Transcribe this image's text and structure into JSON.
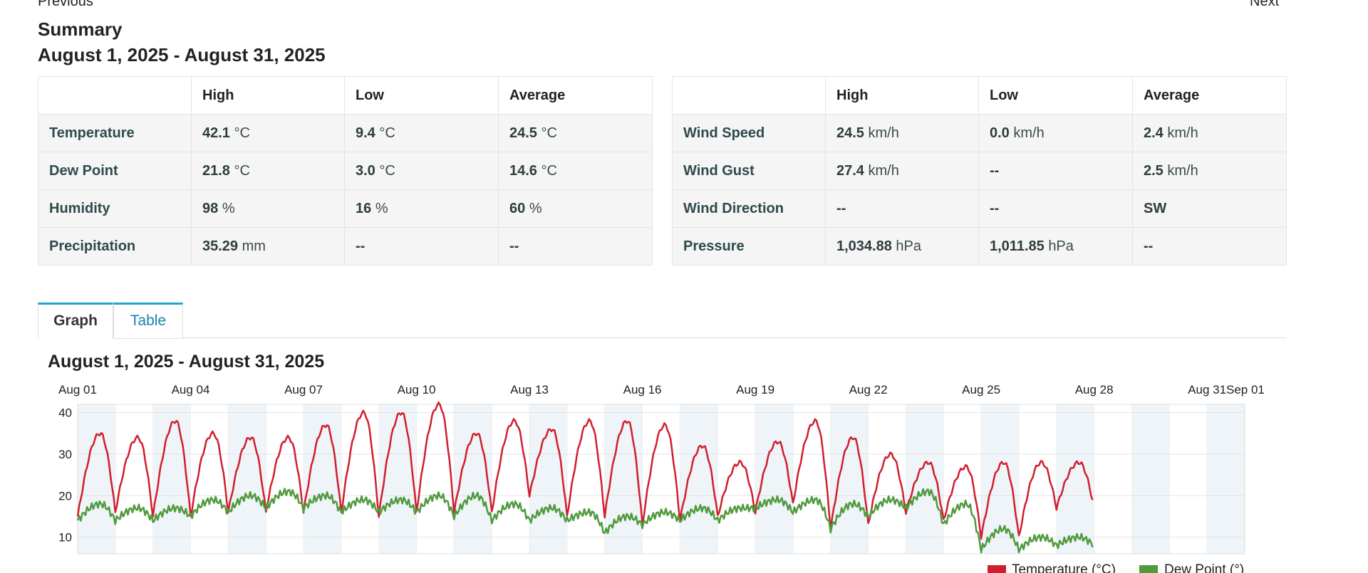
{
  "nav": {
    "previous": "Previous",
    "next": "Next"
  },
  "summary": {
    "title": "Summary",
    "date_range": "August 1, 2025 - August 31, 2025",
    "headers": [
      "High",
      "Low",
      "Average"
    ],
    "left_rows": [
      {
        "label": "Temperature",
        "high": {
          "v": "42.1",
          "u": "°C"
        },
        "low": {
          "v": "9.4",
          "u": "°C"
        },
        "avg": {
          "v": "24.5",
          "u": "°C"
        }
      },
      {
        "label": "Dew Point",
        "high": {
          "v": "21.8",
          "u": "°C"
        },
        "low": {
          "v": "3.0",
          "u": "°C"
        },
        "avg": {
          "v": "14.6",
          "u": "°C"
        }
      },
      {
        "label": "Humidity",
        "high": {
          "v": "98",
          "u": "%"
        },
        "low": {
          "v": "16",
          "u": "%"
        },
        "avg": {
          "v": "60",
          "u": "%"
        }
      },
      {
        "label": "Precipitation",
        "high": {
          "v": "35.29",
          "u": "mm"
        },
        "low": {
          "v": "--",
          "u": ""
        },
        "avg": {
          "v": "--",
          "u": ""
        }
      }
    ],
    "right_rows": [
      {
        "label": "Wind Speed",
        "high": {
          "v": "24.5",
          "u": "km/h"
        },
        "low": {
          "v": "0.0",
          "u": "km/h"
        },
        "avg": {
          "v": "2.4",
          "u": "km/h"
        }
      },
      {
        "label": "Wind Gust",
        "high": {
          "v": "27.4",
          "u": "km/h"
        },
        "low": {
          "v": "--",
          "u": ""
        },
        "avg": {
          "v": "2.5",
          "u": "km/h"
        }
      },
      {
        "label": "Wind Direction",
        "high": {
          "v": "--",
          "u": ""
        },
        "low": {
          "v": "--",
          "u": ""
        },
        "avg": {
          "v": "SW",
          "u": ""
        }
      },
      {
        "label": "Pressure",
        "high": {
          "v": "1,034.88",
          "u": "hPa"
        },
        "low": {
          "v": "1,011.85",
          "u": "hPa"
        },
        "avg": {
          "v": "--",
          "u": ""
        }
      }
    ]
  },
  "tabs": [
    {
      "label": "Graph",
      "active": true
    },
    {
      "label": "Table",
      "active": false
    }
  ],
  "chart_data": {
    "type": "line",
    "title": "August 1, 2025 - August 31, 2025",
    "x_tick_labels": [
      "Aug 01",
      "Aug 04",
      "Aug 07",
      "Aug 10",
      "Aug 13",
      "Aug 16",
      "Aug 19",
      "Aug 22",
      "Aug 25",
      "Aug 28",
      "Aug 31",
      "Sep 01"
    ],
    "y_ticks": [
      10,
      20,
      30,
      40
    ],
    "ylim": [
      6,
      42
    ],
    "x_range_days": [
      0,
      31
    ],
    "x_axis_position": "top",
    "grid": true,
    "legend_position": "bottom-right",
    "series": [
      {
        "name": "Temperature (°C)",
        "color": "#d11e2e",
        "daily_low": [
          15,
          16,
          15,
          15,
          16,
          16,
          16,
          16,
          15,
          16,
          16,
          16,
          20,
          15,
          15,
          13,
          14,
          15,
          16,
          18,
          12,
          13,
          16,
          14,
          10,
          10,
          17
        ],
        "daily_high": [
          35,
          34,
          38,
          35,
          34,
          34,
          37,
          40,
          40,
          42,
          35,
          38,
          36,
          38,
          38,
          37,
          32,
          28,
          33,
          38,
          34,
          30,
          28,
          27,
          28,
          28,
          28
        ]
      },
      {
        "name": "Dew Point (°)",
        "color": "#4f9a3d",
        "daily_low": [
          14,
          14,
          14,
          15,
          16,
          17,
          17,
          16,
          16,
          16,
          15,
          14,
          14,
          14,
          11,
          13,
          14,
          14,
          17,
          16,
          12,
          15,
          17,
          13,
          7,
          7,
          8
        ],
        "daily_high": [
          18,
          17,
          17,
          19,
          20,
          21,
          20,
          19,
          19,
          20,
          20,
          18,
          17,
          16,
          15,
          16,
          17,
          17,
          19,
          19,
          18,
          19,
          21,
          18,
          12,
          10,
          10
        ]
      }
    ]
  }
}
